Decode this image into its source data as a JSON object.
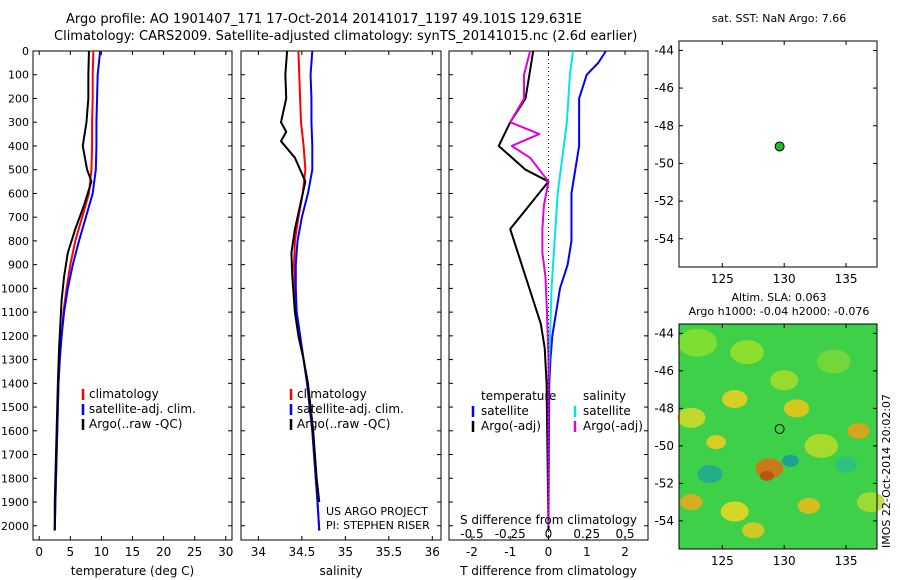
{
  "header": {
    "line1": "Argo profile: AO 1901407_171 17-Oct-2014 20141017_1197 49.101S 129.631E",
    "line2": "Climatology: CARS2009. Satellite-adjusted climatology: synTS_20141015.nc (2.6d earlier)"
  },
  "credit": {
    "line1": "US ARGO PROJECT",
    "line2": "PI: STEPHEN RISER"
  },
  "colors": {
    "argo": "#000000",
    "climatology": "#ff0000",
    "satellite": "#0000ff",
    "sat_diff_s": "#00e5e5",
    "argo_diff_s": "#e000e0",
    "map_dot": "#22bb22"
  },
  "chart_data": [
    {
      "id": "temperature",
      "type": "line",
      "xlabel": "temperature (deg C)",
      "ylabel": "",
      "xlim": [
        -1,
        31
      ],
      "ylim": [
        2060,
        0
      ],
      "xticks": [
        0,
        5,
        10,
        15,
        20,
        25,
        30
      ],
      "yticks": [
        0,
        100,
        200,
        300,
        400,
        500,
        600,
        700,
        800,
        900,
        1000,
        1100,
        1200,
        1300,
        1400,
        1500,
        1600,
        1700,
        1800,
        1900,
        2000
      ],
      "legend": [
        "climatology",
        "satellite-adj. clim.",
        "Argo(..raw -QC)"
      ],
      "series": [
        {
          "name": "climatology",
          "color": "#ff0000",
          "points": [
            [
              8.7,
              0
            ],
            [
              8.6,
              100
            ],
            [
              8.6,
              200
            ],
            [
              8.5,
              300
            ],
            [
              8.5,
              400
            ],
            [
              8.4,
              500
            ],
            [
              8.0,
              600
            ],
            [
              6.9,
              700
            ],
            [
              5.8,
              800
            ],
            [
              5.0,
              900
            ],
            [
              4.4,
              1000
            ],
            [
              3.9,
              1100
            ],
            [
              3.6,
              1200
            ],
            [
              3.3,
              1300
            ],
            [
              3.1,
              1400
            ],
            [
              3.0,
              1500
            ],
            [
              2.9,
              1600
            ],
            [
              2.8,
              1700
            ],
            [
              2.7,
              1800
            ],
            [
              2.6,
              1900
            ],
            [
              2.5,
              2020
            ]
          ]
        },
        {
          "name": "satellite-adj. clim.",
          "color": "#0000ff",
          "points": [
            [
              9.8,
              0
            ],
            [
              9.6,
              50
            ],
            [
              9.4,
              100
            ],
            [
              9.3,
              200
            ],
            [
              9.2,
              300
            ],
            [
              9.2,
              400
            ],
            [
              9.1,
              500
            ],
            [
              8.6,
              600
            ],
            [
              7.5,
              700
            ],
            [
              6.4,
              800
            ],
            [
              5.4,
              900
            ],
            [
              4.6,
              1000
            ],
            [
              4.0,
              1100
            ],
            [
              3.6,
              1200
            ],
            [
              3.3,
              1300
            ],
            [
              3.1,
              1400
            ],
            [
              3.0,
              1500
            ],
            [
              2.9,
              1600
            ],
            [
              2.8,
              1700
            ],
            [
              2.7,
              1800
            ],
            [
              2.6,
              1900
            ],
            [
              2.5,
              2020
            ]
          ]
        },
        {
          "name": "Argo(..raw -QC)",
          "color": "#000000",
          "points": [
            [
              8.0,
              0
            ],
            [
              7.9,
              100
            ],
            [
              7.9,
              200
            ],
            [
              7.6,
              300
            ],
            [
              7.0,
              400
            ],
            [
              7.7,
              500
            ],
            [
              8.4,
              550
            ],
            [
              7.2,
              650
            ],
            [
              5.8,
              750
            ],
            [
              4.6,
              850
            ],
            [
              4.0,
              950
            ],
            [
              3.6,
              1050
            ],
            [
              3.4,
              1150
            ],
            [
              3.2,
              1250
            ],
            [
              3.0,
              1400
            ],
            [
              2.9,
              1500
            ],
            [
              2.8,
              1600
            ],
            [
              2.7,
              1700
            ],
            [
              2.6,
              1800
            ],
            [
              2.5,
              1900
            ],
            [
              2.5,
              2020
            ]
          ]
        }
      ]
    },
    {
      "id": "salinity",
      "type": "line",
      "xlabel": "salinity",
      "ylabel": "",
      "xlim": [
        33.8,
        36.1
      ],
      "ylim": [
        2060,
        0
      ],
      "xticks": [
        34,
        34.5,
        35,
        35.5,
        36
      ],
      "xtick_labels": [
        "34",
        "34.5",
        "35",
        "35.5",
        "36"
      ],
      "legend": [
        "climatology",
        "satellite-adj. clim.",
        "Argo(..raw -QC)"
      ],
      "series": [
        {
          "name": "climatology",
          "color": "#ff0000",
          "points": [
            [
              34.46,
              0
            ],
            [
              34.47,
              100
            ],
            [
              34.48,
              200
            ],
            [
              34.49,
              300
            ],
            [
              34.52,
              400
            ],
            [
              34.54,
              500
            ],
            [
              34.51,
              600
            ],
            [
              34.46,
              700
            ],
            [
              34.42,
              800
            ],
            [
              34.41,
              900
            ],
            [
              34.42,
              1000
            ],
            [
              34.44,
              1100
            ],
            [
              34.48,
              1200
            ],
            [
              34.52,
              1300
            ],
            [
              34.56,
              1400
            ],
            [
              34.59,
              1500
            ],
            [
              34.62,
              1600
            ],
            [
              34.64,
              1700
            ],
            [
              34.66,
              1800
            ],
            [
              34.68,
              1900
            ],
            [
              34.7,
              2020
            ]
          ]
        },
        {
          "name": "satellite-adj. clim.",
          "color": "#0000ff",
          "points": [
            [
              34.62,
              0
            ],
            [
              34.6,
              100
            ],
            [
              34.61,
              200
            ],
            [
              34.61,
              300
            ],
            [
              34.62,
              400
            ],
            [
              34.62,
              500
            ],
            [
              34.57,
              600
            ],
            [
              34.5,
              700
            ],
            [
              34.45,
              800
            ],
            [
              34.43,
              900
            ],
            [
              34.43,
              1000
            ],
            [
              34.44,
              1100
            ],
            [
              34.48,
              1200
            ],
            [
              34.52,
              1300
            ],
            [
              34.56,
              1400
            ],
            [
              34.59,
              1500
            ],
            [
              34.62,
              1600
            ],
            [
              34.64,
              1700
            ],
            [
              34.66,
              1800
            ],
            [
              34.68,
              1900
            ],
            [
              34.7,
              2020
            ]
          ]
        },
        {
          "name": "Argo(..raw -QC)",
          "color": "#000000",
          "points": [
            [
              34.33,
              0
            ],
            [
              34.31,
              100
            ],
            [
              34.32,
              200
            ],
            [
              34.26,
              300
            ],
            [
              34.32,
              340
            ],
            [
              34.26,
              380
            ],
            [
              34.42,
              450
            ],
            [
              34.54,
              550
            ],
            [
              34.48,
              650
            ],
            [
              34.42,
              750
            ],
            [
              34.38,
              850
            ],
            [
              34.39,
              950
            ],
            [
              34.42,
              1100
            ],
            [
              34.46,
              1200
            ],
            [
              34.52,
              1300
            ],
            [
              34.57,
              1400
            ],
            [
              34.6,
              1500
            ],
            [
              34.63,
              1600
            ],
            [
              34.65,
              1700
            ],
            [
              34.67,
              1800
            ],
            [
              34.7,
              1900
            ]
          ]
        }
      ]
    },
    {
      "id": "differences",
      "type": "line",
      "xlabel": "T difference from climatology",
      "xlabel_top": "S difference from climatology",
      "xlim": [
        -2.6,
        2.6
      ],
      "ylim": [
        2060,
        0
      ],
      "xticks": [
        -2,
        -1,
        0,
        1,
        2
      ],
      "xticks_s": [
        -0.5,
        -0.25,
        0,
        0.25,
        0.5
      ],
      "xtick_labels_s": [
        "-0.5",
        "-0.25",
        "0",
        "0.25",
        "0.5"
      ],
      "legend_titles": [
        "temperature",
        "salinity"
      ],
      "legend": [
        "satellite",
        "Argo(-adj)",
        "satellite",
        "Argo(-adj)"
      ],
      "series": [
        {
          "name": "T satellite",
          "color": "#0000ff",
          "points": [
            [
              1.5,
              0
            ],
            [
              1.3,
              50
            ],
            [
              1.0,
              100
            ],
            [
              0.8,
              200
            ],
            [
              0.8,
              300
            ],
            [
              0.8,
              400
            ],
            [
              0.7,
              500
            ],
            [
              0.6,
              600
            ],
            [
              0.6,
              700
            ],
            [
              0.6,
              800
            ],
            [
              0.5,
              900
            ],
            [
              0.3,
              1000
            ],
            [
              0.2,
              1100
            ],
            [
              0.1,
              1200
            ],
            [
              0.05,
              1300
            ],
            [
              0.02,
              1400
            ],
            [
              0.0,
              2020
            ]
          ]
        },
        {
          "name": "T Argo(-adj)",
          "color": "#000000",
          "points": [
            [
              -0.4,
              0
            ],
            [
              -0.6,
              200
            ],
            [
              -1.0,
              300
            ],
            [
              -1.3,
              400
            ],
            [
              -0.6,
              500
            ],
            [
              0.0,
              550
            ],
            [
              -0.5,
              650
            ],
            [
              -1.0,
              750
            ],
            [
              -0.8,
              850
            ],
            [
              -0.6,
              950
            ],
            [
              -0.4,
              1050
            ],
            [
              -0.2,
              1150
            ],
            [
              -0.1,
              1250
            ],
            [
              -0.05,
              1400
            ],
            [
              0.0,
              2020
            ]
          ]
        },
        {
          "name": "S satellite",
          "color": "#00e5e5",
          "points": [
            [
              0.16,
              0
            ],
            [
              0.14,
              100
            ],
            [
              0.13,
              200
            ],
            [
              0.12,
              300
            ],
            [
              0.1,
              400
            ],
            [
              0.08,
              500
            ],
            [
              0.06,
              600
            ],
            [
              0.04,
              800
            ],
            [
              0.02,
              1000
            ],
            [
              0.01,
              1200
            ],
            [
              0.0,
              1400
            ],
            [
              0.0,
              2000
            ]
          ]
        },
        {
          "name": "S Argo(-adj)",
          "color": "#e000e0",
          "points": [
            [
              -0.12,
              0
            ],
            [
              -0.16,
              100
            ],
            [
              -0.16,
              200
            ],
            [
              -0.25,
              300
            ],
            [
              -0.06,
              350
            ],
            [
              -0.24,
              400
            ],
            [
              -0.12,
              450
            ],
            [
              0.0,
              550
            ],
            [
              -0.03,
              650
            ],
            [
              -0.04,
              750
            ],
            [
              -0.04,
              850
            ],
            [
              -0.02,
              950
            ],
            [
              -0.01,
              1100
            ],
            [
              0.0,
              1300
            ],
            [
              0.0,
              2000
            ]
          ]
        }
      ]
    },
    {
      "id": "sst_map",
      "type": "scatter",
      "title": "sat. SST: NaN Argo: 7.66",
      "xlim": [
        121.5,
        137.5
      ],
      "ylim": [
        -55.5,
        -43.5
      ],
      "xticks": [
        125,
        130,
        135
      ],
      "yticks": [
        -44,
        -46,
        -48,
        -50,
        -52,
        -54
      ],
      "points": [
        [
          129.63,
          -49.1
        ]
      ]
    },
    {
      "id": "sla_map",
      "type": "heatmap",
      "title": "Altim. SLA: 0.063",
      "subtitle": "Argo h1000: -0.04 h2000: -0.076",
      "side_label": "IMOS 22-Oct-2014 20:02:07",
      "xlim": [
        121.5,
        137.5
      ],
      "ylim": [
        -55.5,
        -43.5
      ],
      "xticks": [
        125,
        130,
        135
      ],
      "yticks": [
        -44,
        -46,
        -48,
        -50,
        -52,
        -54
      ],
      "points": [
        [
          129.63,
          -49.1
        ]
      ]
    }
  ]
}
